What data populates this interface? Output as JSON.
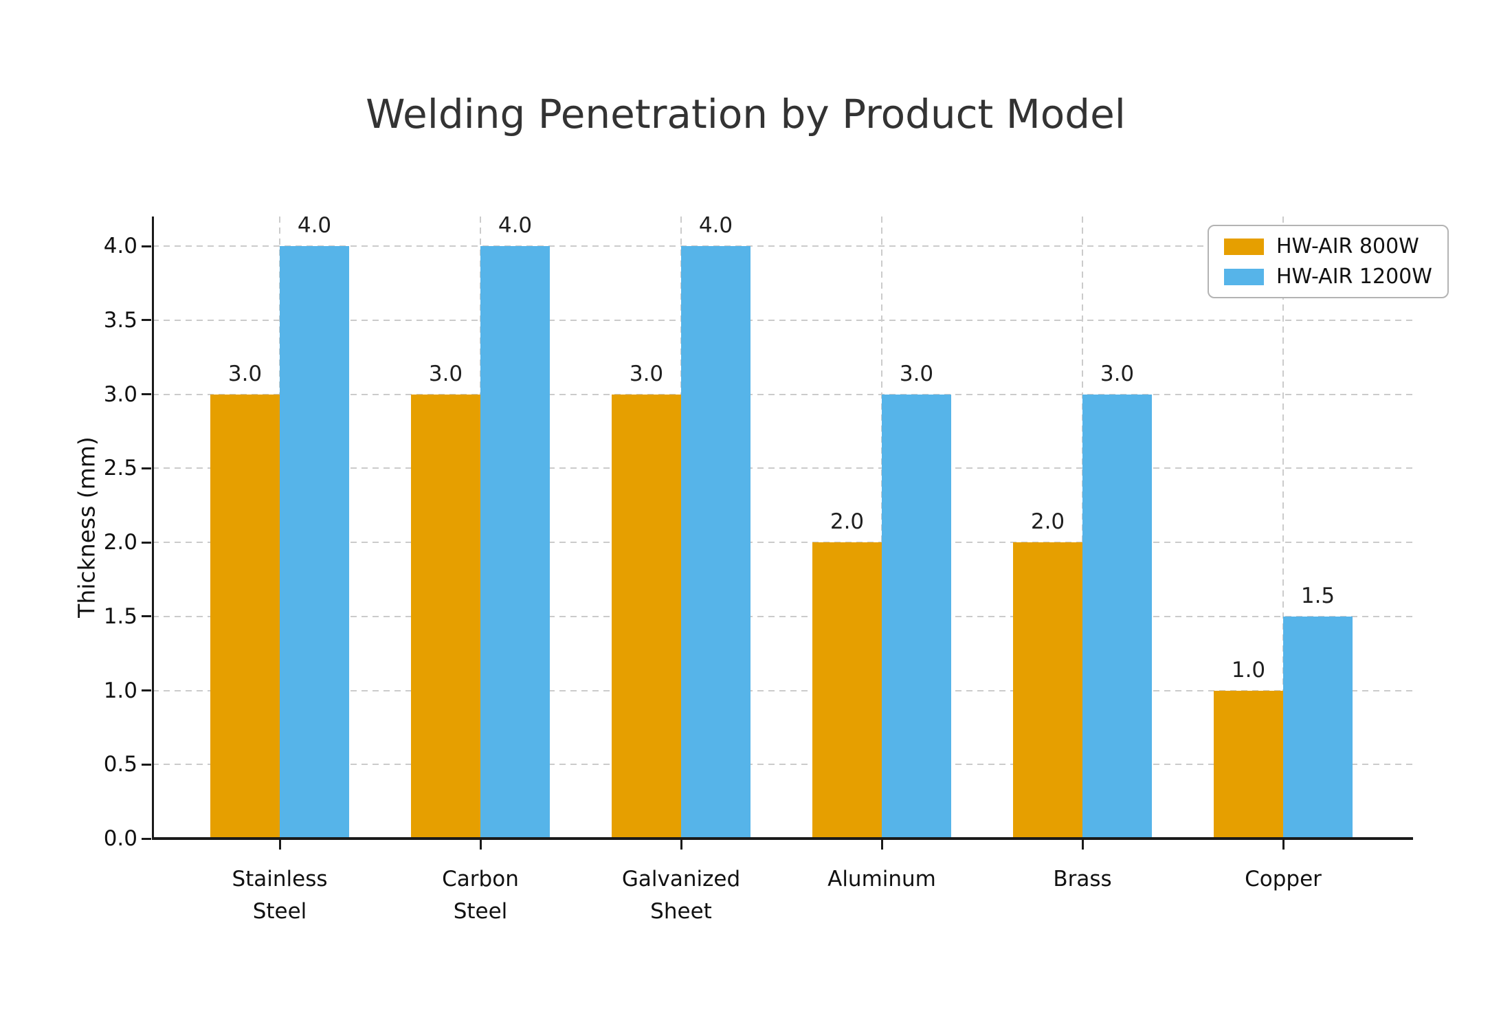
{
  "chart_data": {
    "type": "bar",
    "title": "Welding Penetration by Product Model",
    "ylabel": "Thickness (mm)",
    "xlabel": "",
    "categories": [
      "Stainless\nSteel",
      "Carbon\nSteel",
      "Galvanized\nSheet",
      "Aluminum",
      "Brass",
      "Copper"
    ],
    "series": [
      {
        "name": "HW-AIR 800W",
        "color": "#E69F00",
        "values": [
          3.0,
          3.0,
          3.0,
          2.0,
          2.0,
          1.0
        ]
      },
      {
        "name": "HW-AIR 1200W",
        "color": "#56B4E9",
        "values": [
          4.0,
          4.0,
          4.0,
          3.0,
          3.0,
          1.5
        ]
      }
    ],
    "ylim": [
      0,
      4.2
    ],
    "yticks": [
      0.0,
      0.5,
      1.0,
      1.5,
      2.0,
      2.5,
      3.0,
      3.5,
      4.0
    ],
    "grid": true,
    "grid_style": "dashed",
    "legend_position": "upper right",
    "bar_value_labels": true,
    "colors": {
      "axis": "#1a1a1a",
      "grid": "#cbcbcb",
      "title_text": "#333333",
      "tick_text": "#111111",
      "legend_border": "#b3b3b3",
      "background": "#ffffff"
    }
  }
}
